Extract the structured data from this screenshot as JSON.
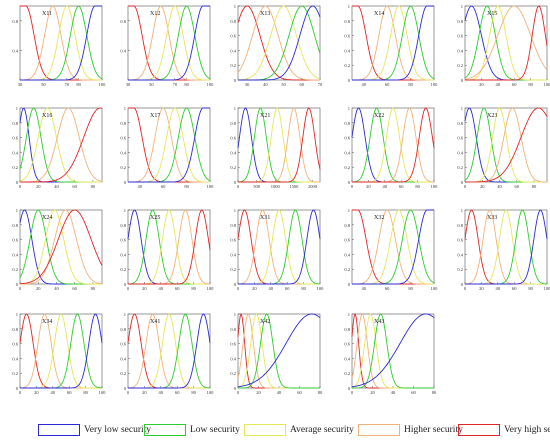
{
  "chart_data": {
    "type": "line",
    "series": [
      {
        "name": "Very low security",
        "color": "#2b2bd6"
      },
      {
        "name": "Low security",
        "color": "#2ecc2e"
      },
      {
        "name": "Average security",
        "color": "#e6e65a"
      },
      {
        "name": "Higher security",
        "color": "#f2b27a"
      },
      {
        "name": "Very high security",
        "color": "#e02626"
      }
    ],
    "panels": [
      {
        "title": "X11",
        "xlim": [
          30,
          100
        ],
        "xticks": [
          30,
          50,
          70,
          80,
          100
        ],
        "ylim": [
          0,
          1
        ],
        "yticks": [
          0.4,
          0.8
        ],
        "curves": [
          {
            "series": 4,
            "center": 35,
            "width": 7,
            "side": "left"
          },
          {
            "series": 3,
            "center": 58,
            "width": 7
          },
          {
            "series": 2,
            "center": 70,
            "width": 7
          },
          {
            "series": 1,
            "center": 80,
            "width": 7
          },
          {
            "series": 0,
            "center": 94,
            "width": 7,
            "side": "right"
          }
        ]
      },
      {
        "title": "X12",
        "xlim": [
          30,
          100
        ],
        "xticks": [
          30,
          50,
          70,
          80,
          100
        ],
        "ylim": [
          0,
          1
        ],
        "yticks": [
          0.4,
          0.8
        ],
        "curves": [
          {
            "series": 4,
            "center": 35,
            "width": 7,
            "side": "left"
          },
          {
            "series": 3,
            "center": 58,
            "width": 7
          },
          {
            "series": 2,
            "center": 70,
            "width": 7
          },
          {
            "series": 1,
            "center": 80,
            "width": 7
          },
          {
            "series": 0,
            "center": 94,
            "width": 7,
            "side": "right"
          }
        ]
      },
      {
        "title": "X13",
        "xlim": [
          25,
          70
        ],
        "xticks": [
          30,
          40,
          50,
          60,
          70
        ],
        "ylim": [
          0,
          1
        ],
        "yticks": [
          0,
          0.2,
          0.4,
          0.6,
          0.8,
          1
        ],
        "curves": [
          {
            "series": 4,
            "center": 30,
            "width": 7
          },
          {
            "series": 3,
            "center": 40,
            "width": 7
          },
          {
            "series": 2,
            "center": 50,
            "width": 7
          },
          {
            "series": 1,
            "center": 60,
            "width": 7
          },
          {
            "series": 0,
            "center": 66,
            "width": 7
          }
        ]
      },
      {
        "title": "X14",
        "xlim": [
          30,
          100
        ],
        "xticks": [
          40,
          60,
          80,
          100
        ],
        "ylim": [
          0,
          1
        ],
        "yticks": [
          0,
          0.2,
          0.4,
          0.6,
          0.8,
          1
        ],
        "curves": [
          {
            "series": 4,
            "center": 35,
            "width": 7,
            "side": "left"
          },
          {
            "series": 3,
            "center": 60,
            "width": 7
          },
          {
            "series": 2,
            "center": 70,
            "width": 7
          },
          {
            "series": 1,
            "center": 80,
            "width": 7
          },
          {
            "series": 0,
            "center": 94,
            "width": 7,
            "side": "right"
          }
        ]
      },
      {
        "title": "X15",
        "xlim": [
          0,
          100
        ],
        "xticks": [
          20,
          40,
          60,
          80,
          100
        ],
        "ylim": [
          0,
          1
        ],
        "yticks": [
          0,
          0.2,
          0.4,
          0.6,
          0.8,
          1
        ],
        "curves": [
          {
            "series": 0,
            "center": 8,
            "width": 12
          },
          {
            "series": 1,
            "center": 27,
            "width": 10
          },
          {
            "series": 2,
            "center": 40,
            "width": 10
          },
          {
            "series": 3,
            "center": 60,
            "width": 20
          },
          {
            "series": 4,
            "center": 90,
            "width": 8
          }
        ]
      },
      {
        "title": "X16",
        "xlim": [
          0,
          90
        ],
        "xticks": [
          0,
          20,
          40,
          60,
          80
        ],
        "ylim": [
          0,
          1
        ],
        "yticks": [
          0,
          0.2,
          0.4,
          0.6,
          0.8,
          1
        ],
        "curves": [
          {
            "series": 0,
            "center": 4,
            "width": 6
          },
          {
            "series": 1,
            "center": 15,
            "width": 8
          },
          {
            "series": 2,
            "center": 30,
            "width": 10
          },
          {
            "series": 3,
            "center": 53,
            "width": 12
          },
          {
            "series": 4,
            "center": 88,
            "width": 18
          }
        ]
      },
      {
        "title": "X17",
        "xlim": [
          30,
          100
        ],
        "xticks": [
          40,
          60,
          80,
          100
        ],
        "ylim": [
          0,
          1
        ],
        "yticks": [
          0,
          0.2,
          0.4,
          0.6,
          0.8,
          1
        ],
        "curves": [
          {
            "series": 4,
            "center": 35,
            "width": 7,
            "side": "left"
          },
          {
            "series": 3,
            "center": 60,
            "width": 7
          },
          {
            "series": 2,
            "center": 70,
            "width": 7
          },
          {
            "series": 1,
            "center": 80,
            "width": 7
          },
          {
            "series": 0,
            "center": 94,
            "width": 7,
            "side": "right"
          }
        ]
      },
      {
        "title": "X21",
        "xlim": [
          0,
          2200
        ],
        "xticks": [
          0,
          500,
          1000,
          1500,
          2000
        ],
        "ylim": [
          0,
          1
        ],
        "yticks": [
          0,
          0.2,
          0.4,
          0.6,
          0.8,
          1
        ],
        "curves": [
          {
            "series": 0,
            "center": 200,
            "width": 160
          },
          {
            "series": 1,
            "center": 600,
            "width": 160
          },
          {
            "series": 2,
            "center": 1050,
            "width": 160
          },
          {
            "series": 3,
            "center": 1500,
            "width": 160
          },
          {
            "series": 4,
            "center": 1900,
            "width": 160
          }
        ]
      },
      {
        "title": "X22",
        "xlim": [
          0,
          100
        ],
        "xticks": [
          0,
          20,
          40,
          60,
          80,
          100
        ],
        "ylim": [
          0,
          1
        ],
        "yticks": [
          0,
          0.2,
          0.4,
          0.6,
          0.8,
          1
        ],
        "curves": [
          {
            "series": 0,
            "center": 8,
            "width": 8
          },
          {
            "series": 1,
            "center": 30,
            "width": 8
          },
          {
            "series": 2,
            "center": 50,
            "width": 8
          },
          {
            "series": 3,
            "center": 70,
            "width": 8
          },
          {
            "series": 4,
            "center": 90,
            "width": 8
          }
        ]
      },
      {
        "title": "X23",
        "xlim": [
          0,
          95
        ],
        "xticks": [
          0,
          20,
          40,
          60,
          80
        ],
        "ylim": [
          0,
          1
        ],
        "yticks": [
          0,
          0.2,
          0.4,
          0.6,
          0.8,
          1
        ],
        "curves": [
          {
            "series": 0,
            "center": 5,
            "width": 8
          },
          {
            "series": 1,
            "center": 22,
            "width": 8
          },
          {
            "series": 2,
            "center": 40,
            "width": 8
          },
          {
            "series": 3,
            "center": 55,
            "width": 10
          },
          {
            "series": 4,
            "center": 85,
            "width": 20
          }
        ]
      },
      {
        "title": "X24",
        "xlim": [
          0,
          90
        ],
        "xticks": [
          0,
          20,
          40,
          60,
          80
        ],
        "ylim": [
          0,
          1
        ],
        "yticks": [
          0,
          0.2,
          0.4,
          0.6,
          0.8,
          1
        ],
        "curves": [
          {
            "series": 0,
            "center": 5,
            "width": 8
          },
          {
            "series": 1,
            "center": 20,
            "width": 9
          },
          {
            "series": 2,
            "center": 38,
            "width": 10
          },
          {
            "series": 3,
            "center": 50,
            "width": 12
          },
          {
            "series": 4,
            "center": 60,
            "width": 18
          }
        ]
      },
      {
        "title": "X25",
        "xlim": [
          0,
          100
        ],
        "xticks": [
          0,
          20,
          40,
          60,
          80,
          100
        ],
        "ylim": [
          0,
          1
        ],
        "yticks": [
          0,
          0.2,
          0.4,
          0.6,
          0.8,
          1
        ],
        "curves": [
          {
            "series": 0,
            "center": 8,
            "width": 8
          },
          {
            "series": 1,
            "center": 30,
            "width": 8
          },
          {
            "series": 2,
            "center": 50,
            "width": 8
          },
          {
            "series": 3,
            "center": 70,
            "width": 8
          },
          {
            "series": 4,
            "center": 90,
            "width": 8
          }
        ]
      },
      {
        "title": "X31",
        "xlim": [
          0,
          100
        ],
        "xticks": [
          0,
          20,
          40,
          60,
          80,
          100
        ],
        "ylim": [
          0,
          1
        ],
        "yticks": [
          0,
          0.2,
          0.4,
          0.6,
          0.8,
          1
        ],
        "curves": [
          {
            "series": 4,
            "center": 8,
            "width": 8
          },
          {
            "series": 3,
            "center": 30,
            "width": 8
          },
          {
            "series": 2,
            "center": 50,
            "width": 8
          },
          {
            "series": 1,
            "center": 70,
            "width": 8
          },
          {
            "series": 0,
            "center": 92,
            "width": 8
          }
        ]
      },
      {
        "title": "X32",
        "xlim": [
          30,
          100
        ],
        "xticks": [
          40,
          60,
          80,
          100
        ],
        "ylim": [
          0,
          1
        ],
        "yticks": [
          0,
          0.2,
          0.4,
          0.6,
          0.8,
          1
        ],
        "curves": [
          {
            "series": 4,
            "center": 35,
            "width": 7,
            "side": "left"
          },
          {
            "series": 3,
            "center": 60,
            "width": 7
          },
          {
            "series": 2,
            "center": 70,
            "width": 7
          },
          {
            "series": 1,
            "center": 80,
            "width": 7
          },
          {
            "series": 0,
            "center": 94,
            "width": 7,
            "side": "right"
          }
        ]
      },
      {
        "title": "X33",
        "xlim": [
          0,
          100
        ],
        "xticks": [
          0,
          20,
          40,
          60,
          80,
          100
        ],
        "ylim": [
          0,
          1
        ],
        "yticks": [
          0,
          0.2,
          0.4,
          0.6,
          0.8,
          1
        ],
        "curves": [
          {
            "series": 4,
            "center": 8,
            "width": 8
          },
          {
            "series": 3,
            "center": 30,
            "width": 8
          },
          {
            "series": 2,
            "center": 50,
            "width": 8
          },
          {
            "series": 1,
            "center": 70,
            "width": 8
          },
          {
            "series": 0,
            "center": 92,
            "width": 8
          }
        ]
      },
      {
        "title": "X34",
        "xlim": [
          0,
          100
        ],
        "xticks": [
          0,
          20,
          40,
          60,
          80,
          100
        ],
        "ylim": [
          0,
          1
        ],
        "yticks": [
          0,
          0.2,
          0.4,
          0.6,
          0.8,
          1
        ],
        "curves": [
          {
            "series": 4,
            "center": 8,
            "width": 8
          },
          {
            "series": 3,
            "center": 30,
            "width": 8
          },
          {
            "series": 2,
            "center": 50,
            "width": 8
          },
          {
            "series": 1,
            "center": 70,
            "width": 8
          },
          {
            "series": 0,
            "center": 92,
            "width": 8
          }
        ]
      },
      {
        "title": "X41",
        "xlim": [
          0,
          100
        ],
        "xticks": [
          0,
          20,
          40,
          60,
          80,
          100
        ],
        "ylim": [
          0,
          1
        ],
        "yticks": [
          0,
          0.2,
          0.4,
          0.6,
          0.8,
          1
        ],
        "curves": [
          {
            "series": 4,
            "center": 8,
            "width": 8
          },
          {
            "series": 3,
            "center": 30,
            "width": 8
          },
          {
            "series": 2,
            "center": 50,
            "width": 8
          },
          {
            "series": 1,
            "center": 70,
            "width": 8
          },
          {
            "series": 0,
            "center": 92,
            "width": 8
          }
        ]
      },
      {
        "title": "X42",
        "xlim": [
          0,
          80
        ],
        "xticks": [
          0,
          20,
          40,
          60,
          80
        ],
        "ylim": [
          0,
          1
        ],
        "yticks": [
          0,
          0.2,
          0.4,
          0.6,
          0.8,
          1
        ],
        "curves": [
          {
            "series": 4,
            "center": 3,
            "width": 3.5
          },
          {
            "series": 3,
            "center": 10,
            "width": 5
          },
          {
            "series": 2,
            "center": 18,
            "width": 5.5
          },
          {
            "series": 1,
            "center": 28,
            "width": 6
          },
          {
            "series": 0,
            "center": 72,
            "width": 25
          }
        ]
      },
      {
        "title": "X43",
        "xlim": [
          0,
          80
        ],
        "xticks": [
          0,
          20,
          40,
          60,
          80
        ],
        "ylim": [
          0,
          1
        ],
        "yticks": [
          0,
          0.2,
          0.4,
          0.6,
          0.8,
          1
        ],
        "curves": [
          {
            "series": 4,
            "center": 3,
            "width": 3.5
          },
          {
            "series": 3,
            "center": 10,
            "width": 5
          },
          {
            "series": 2,
            "center": 18,
            "width": 5.5
          },
          {
            "series": 1,
            "center": 28,
            "width": 6
          },
          {
            "series": 0,
            "center": 72,
            "width": 25
          }
        ]
      }
    ],
    "legend": [
      "Very low security",
      "Low security",
      "Average security",
      "Higher security",
      "Very high security"
    ]
  }
}
